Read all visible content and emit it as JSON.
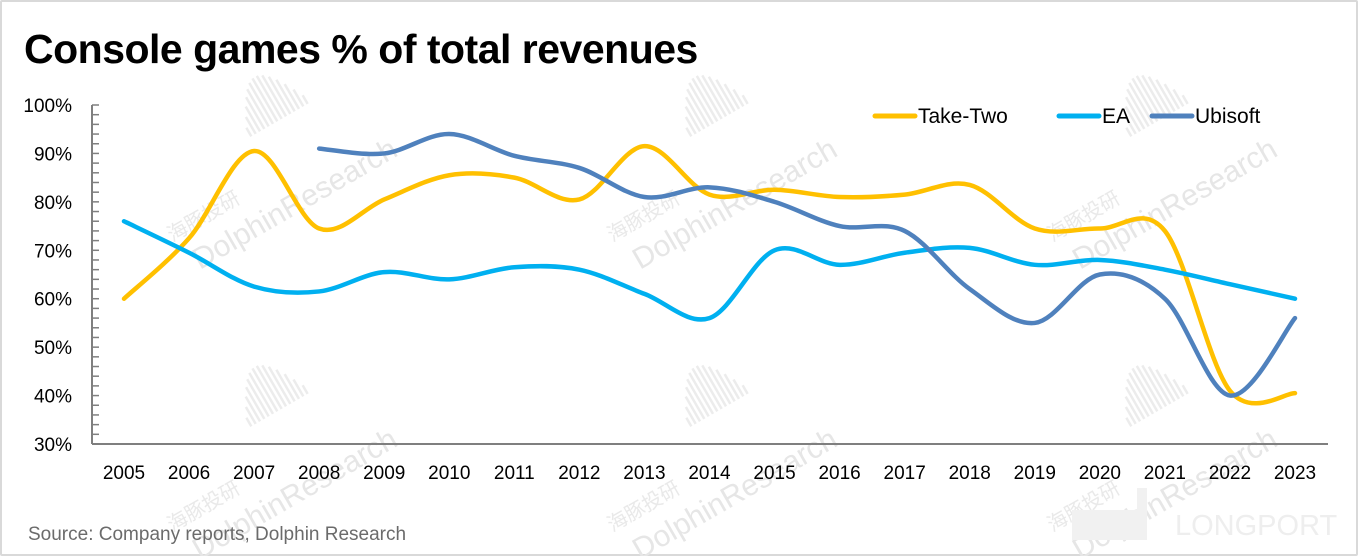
{
  "page": {
    "title": "Console games % of total revenues",
    "source": "Source: Company reports, Dolphin Research",
    "watermark_text": "DolphinResearch",
    "watermark_cn": "海豚投研",
    "brand_watermark": "LONGPORT"
  },
  "chart_data": {
    "type": "line",
    "title": "Console games % of total revenues",
    "xlabel": "",
    "ylabel": "",
    "x": [
      "2005",
      "2006",
      "2007",
      "2008",
      "2009",
      "2010",
      "2011",
      "2012",
      "2013",
      "2014",
      "2015",
      "2016",
      "2017",
      "2018",
      "2019",
      "2020",
      "2021",
      "2022",
      "2023"
    ],
    "ylim": [
      30,
      100
    ],
    "yticks": [
      30,
      40,
      50,
      60,
      70,
      80,
      90,
      100
    ],
    "ytick_labels": [
      "30%",
      "40%",
      "50%",
      "60%",
      "70%",
      "80%",
      "90%",
      "100%"
    ],
    "grid": false,
    "smooth": true,
    "legend_position": "top-right",
    "series": [
      {
        "name": "Take-Two",
        "color": "#FFC000",
        "values": [
          60,
          72.5,
          90.5,
          74.5,
          80.5,
          85.5,
          85,
          80.5,
          91.5,
          81.5,
          82.5,
          81,
          81.5,
          83.5,
          74.5,
          74.5,
          74,
          41,
          40.5
        ]
      },
      {
        "name": "EA",
        "color": "#00B0F0",
        "values": [
          76,
          69.5,
          62.5,
          61.5,
          65.5,
          64,
          66.5,
          66,
          61,
          56,
          70,
          67,
          69.5,
          70.5,
          67,
          68,
          66,
          63,
          60
        ]
      },
      {
        "name": "Ubisoft",
        "color": "#4F81BD",
        "values": [
          null,
          null,
          null,
          91,
          90,
          94,
          89.5,
          87,
          81,
          83,
          80,
          75,
          74,
          62,
          55,
          65,
          60,
          40,
          56
        ]
      }
    ]
  }
}
